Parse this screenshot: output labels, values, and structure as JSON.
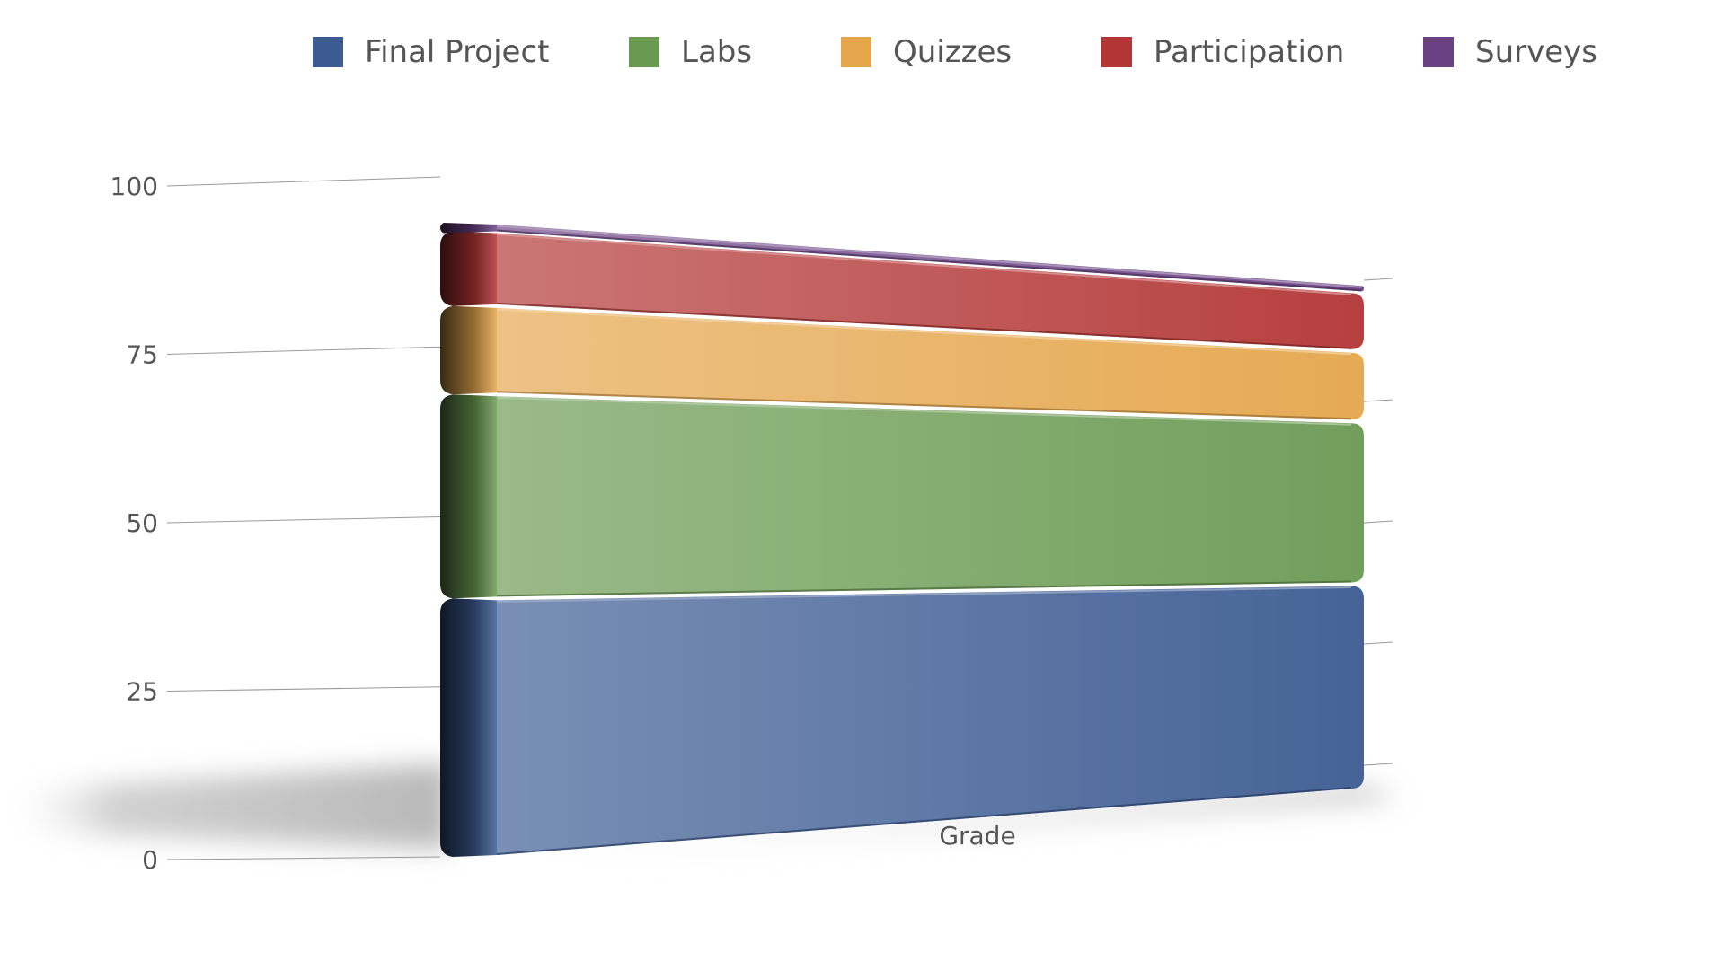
{
  "chart_data": {
    "type": "bar",
    "stacked": true,
    "style": "3d",
    "categories": [
      "Grade"
    ],
    "series": [
      {
        "name": "Final Project",
        "values": [
          38
        ],
        "color": "#3B5B92"
      },
      {
        "name": "Labs",
        "values": [
          30
        ],
        "color": "#6A9A52"
      },
      {
        "name": "Quizzes",
        "values": [
          13
        ],
        "color": "#E5A64B"
      },
      {
        "name": "Participation",
        "values": [
          11
        ],
        "color": "#B33535"
      },
      {
        "name": "Surveys",
        "values": [
          1
        ],
        "color": "#6A4284"
      }
    ],
    "title": "",
    "xlabel": "",
    "ylabel": "",
    "ylim": [
      0,
      100
    ],
    "yticks": [
      0,
      25,
      50,
      75,
      100
    ],
    "ytick_labels": [
      "0",
      "25",
      "50",
      "75",
      "100"
    ],
    "grid": true,
    "legend_position": "top"
  }
}
